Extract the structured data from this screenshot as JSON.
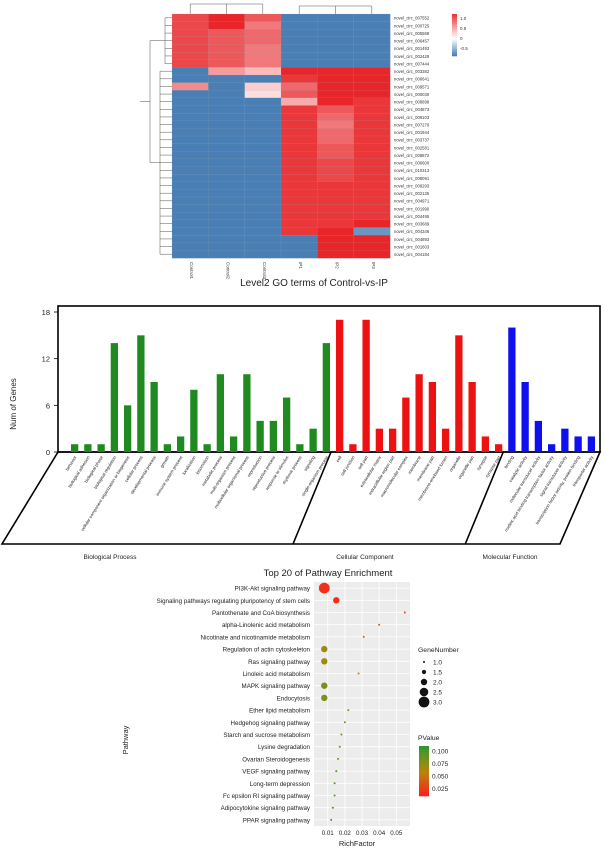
{
  "heatmap": {
    "title": "Level2 GO terms of Control-vs-IP",
    "columns": [
      "Control1",
      "Control2",
      "Control3",
      "IP1",
      "IP2",
      "IP3"
    ],
    "rows": [
      {
        "label": "novel_circ_007552",
        "values": [
          1.1,
          1.6,
          1.0,
          -0.9,
          -0.9,
          -0.9
        ]
      },
      {
        "label": "novel_circ_000725",
        "values": [
          1.1,
          1.3,
          0.8,
          -0.9,
          -0.9,
          -0.9
        ]
      },
      {
        "label": "novel_circ_005568",
        "values": [
          1.1,
          1.0,
          0.9,
          -0.9,
          -0.9,
          -0.9
        ]
      },
      {
        "label": "novel_circ_006457",
        "values": [
          1.1,
          1.0,
          0.9,
          -0.9,
          -0.9,
          -0.9
        ]
      },
      {
        "label": "novel_circ_001493",
        "values": [
          1.1,
          1.0,
          0.8,
          -0.9,
          -0.9,
          -0.9
        ]
      },
      {
        "label": "novel_circ_002428",
        "values": [
          1.1,
          1.0,
          0.8,
          -0.9,
          -0.9,
          -0.9
        ]
      },
      {
        "label": "novel_circ_007444",
        "values": [
          1.1,
          1.0,
          0.8,
          -0.9,
          -0.9,
          -0.9
        ]
      },
      {
        "label": "novel_circ_003382",
        "values": [
          -0.9,
          0.6,
          0.4,
          1.3,
          1.4,
          1.3
        ]
      },
      {
        "label": "novel_circ_006641",
        "values": [
          -0.9,
          -0.9,
          -0.9,
          1.2,
          1.6,
          1.3
        ]
      },
      {
        "label": "novel_circ_009571",
        "values": [
          0.7,
          -0.9,
          0.3,
          0.9,
          1.4,
          1.3
        ]
      },
      {
        "label": "novel_circ_000030",
        "values": [
          -0.9,
          -0.9,
          0.2,
          1.0,
          1.4,
          1.3
        ]
      },
      {
        "label": "novel_circ_008898",
        "values": [
          -0.9,
          -0.9,
          -0.9,
          0.5,
          1.3,
          1.2
        ]
      },
      {
        "label": "novel_circ_004873",
        "values": [
          -0.9,
          -0.9,
          -0.9,
          1.2,
          1.0,
          1.2
        ]
      },
      {
        "label": "novel_circ_009103",
        "values": [
          -0.9,
          -0.9,
          -0.9,
          1.2,
          0.9,
          1.2
        ]
      },
      {
        "label": "novel_circ_007270",
        "values": [
          -0.9,
          -0.9,
          -0.9,
          1.2,
          0.8,
          1.2
        ]
      },
      {
        "label": "novel_circ_001944",
        "values": [
          -0.9,
          -0.9,
          -0.9,
          1.2,
          0.9,
          1.2
        ]
      },
      {
        "label": "novel_circ_003737",
        "values": [
          -0.9,
          -0.9,
          -0.9,
          1.2,
          0.9,
          1.2
        ]
      },
      {
        "label": "novel_circ_002581",
        "values": [
          -0.9,
          -0.9,
          -0.9,
          1.2,
          1.0,
          1.2
        ]
      },
      {
        "label": "novel_circ_008872",
        "values": [
          -0.9,
          -0.9,
          -0.9,
          1.2,
          1.0,
          1.2
        ]
      },
      {
        "label": "novel_circ_006600",
        "values": [
          -0.9,
          -0.9,
          -0.9,
          1.2,
          1.1,
          1.2
        ]
      },
      {
        "label": "novel_circ_010313",
        "values": [
          -0.9,
          -0.9,
          -0.9,
          1.2,
          1.1,
          1.2
        ]
      },
      {
        "label": "novel_circ_008091",
        "values": [
          -0.9,
          -0.9,
          -0.9,
          1.2,
          1.1,
          1.2
        ]
      },
      {
        "label": "novel_circ_009293",
        "values": [
          -0.9,
          -0.9,
          -0.9,
          1.2,
          1.2,
          1.2
        ]
      },
      {
        "label": "novel_circ_002135",
        "values": [
          -0.9,
          -0.9,
          -0.9,
          1.2,
          1.2,
          1.2
        ]
      },
      {
        "label": "novel_circ_004971",
        "values": [
          -0.9,
          -0.9,
          -0.9,
          1.2,
          1.2,
          1.2
        ]
      },
      {
        "label": "novel_circ_001990",
        "values": [
          -0.9,
          -0.9,
          -0.9,
          1.2,
          1.2,
          1.2
        ]
      },
      {
        "label": "novel_circ_004495",
        "values": [
          -0.9,
          -0.9,
          -0.9,
          1.2,
          1.2,
          1.2
        ]
      },
      {
        "label": "novel_circ_003689",
        "values": [
          -0.9,
          -0.9,
          -0.9,
          1.2,
          1.2,
          1.3
        ]
      },
      {
        "label": "novel_circ_004346",
        "values": [
          -0.9,
          -0.9,
          -0.9,
          1.2,
          1.3,
          -0.7
        ]
      },
      {
        "label": "novel_circ_004893",
        "values": [
          -0.9,
          -0.9,
          -0.9,
          -0.9,
          1.3,
          1.3
        ]
      },
      {
        "label": "novel_circ_001603",
        "values": [
          -0.9,
          -0.9,
          -0.9,
          -0.9,
          1.3,
          1.3
        ]
      },
      {
        "label": "novel_circ_004184",
        "values": [
          -0.9,
          -0.9,
          -0.9,
          -0.9,
          1.3,
          1.3
        ]
      }
    ],
    "legend_ticks": [
      "1.0",
      "0.5",
      "0",
      "-0.5"
    ],
    "legend_values": [
      1.0,
      0.5,
      0,
      -0.5
    ],
    "colors": {
      "high": "#e8262a",
      "mid": "#ffffff",
      "low": "#4a7fb5"
    }
  },
  "go_bar": {
    "ylabel": "Num of Genes",
    "yticks": [
      "18",
      "12",
      "6",
      "0"
    ],
    "ymax": 18,
    "terms": [
      {
        "label": "behavior",
        "value": 1,
        "group": 0
      },
      {
        "label": "biological adhesion",
        "value": 1,
        "group": 0
      },
      {
        "label": "biological phase",
        "value": 1,
        "group": 0
      },
      {
        "label": "biological regulation",
        "value": 14,
        "group": 0
      },
      {
        "label": "cellular component organization or biogenesis",
        "value": 6,
        "group": 0
      },
      {
        "label": "cellular process",
        "value": 15,
        "group": 0
      },
      {
        "label": "developmental process",
        "value": 9,
        "group": 0
      },
      {
        "label": "growth",
        "value": 1,
        "group": 0
      },
      {
        "label": "immune system process",
        "value": 2,
        "group": 0
      },
      {
        "label": "localization",
        "value": 8,
        "group": 0
      },
      {
        "label": "locomotion",
        "value": 1,
        "group": 0
      },
      {
        "label": "metabolic process",
        "value": 10,
        "group": 0
      },
      {
        "label": "multi-organism process",
        "value": 2,
        "group": 0
      },
      {
        "label": "multicellular organismal process",
        "value": 10,
        "group": 0
      },
      {
        "label": "reproduction",
        "value": 4,
        "group": 0
      },
      {
        "label": "reproductive process",
        "value": 4,
        "group": 0
      },
      {
        "label": "response to stimulus",
        "value": 7,
        "group": 0
      },
      {
        "label": "rhythmic process",
        "value": 1,
        "group": 0
      },
      {
        "label": "signaling",
        "value": 3,
        "group": 0
      },
      {
        "label": "single-organism process",
        "value": 14,
        "group": 0
      },
      {
        "label": "cell",
        "value": 17,
        "group": 1
      },
      {
        "label": "cell junction",
        "value": 1,
        "group": 1
      },
      {
        "label": "cell part",
        "value": 17,
        "group": 1
      },
      {
        "label": "extracellular matrix",
        "value": 3,
        "group": 1
      },
      {
        "label": "extracellular region part",
        "value": 3,
        "group": 1
      },
      {
        "label": "macromolecular complex",
        "value": 7,
        "group": 1
      },
      {
        "label": "membrane",
        "value": 10,
        "group": 1
      },
      {
        "label": "membrane part",
        "value": 9,
        "group": 1
      },
      {
        "label": "membrane-enclosed lumen",
        "value": 3,
        "group": 1
      },
      {
        "label": "organelle",
        "value": 15,
        "group": 1
      },
      {
        "label": "organelle part",
        "value": 9,
        "group": 1
      },
      {
        "label": "synapse",
        "value": 2,
        "group": 1
      },
      {
        "label": "synapse part",
        "value": 1,
        "group": 1
      },
      {
        "label": "binding",
        "value": 16,
        "group": 2
      },
      {
        "label": "catalytic activity",
        "value": 9,
        "group": 2
      },
      {
        "label": "molecular transducer activity",
        "value": 4,
        "group": 2
      },
      {
        "label": "nucleic acid binding transcription factor activity",
        "value": 1,
        "group": 2
      },
      {
        "label": "signal transducer activity",
        "value": 3,
        "group": 2
      },
      {
        "label": "transcription factor activity, protein binding",
        "value": 2,
        "group": 2
      },
      {
        "label": "transporter activity",
        "value": 2,
        "group": 2
      }
    ],
    "groups": [
      {
        "label": "Biological Process",
        "color": "#1f8a1f"
      },
      {
        "label": "Cellular Component",
        "color": "#ee1111"
      },
      {
        "label": "Molecular Function",
        "color": "#1010ee"
      }
    ]
  },
  "pathway": {
    "title": "Top 20 of Pathway Enrichment",
    "xlabel": "RichFactor",
    "ylabel": "Pathway",
    "xticks": [
      "0.01",
      "0.02",
      "0.03",
      "0.04",
      "0.05"
    ],
    "xlim": [
      0.002,
      0.058
    ],
    "size_legend_title": "GeneNumber",
    "size_legend": [
      "1.0",
      "1.5",
      "2.0",
      "2.5",
      "3.0"
    ],
    "size_values": [
      1.0,
      1.5,
      2.0,
      2.5,
      3.0
    ],
    "color_legend_title": "PValue",
    "color_legend": [
      "0.100",
      "0.075",
      "0.050",
      "0.025"
    ],
    "color_values": [
      0.1,
      0.075,
      0.05,
      0.025
    ],
    "pvalue_range": [
      0.01,
      0.11
    ],
    "colors": {
      "low_p": "#ff1a1a",
      "high_p": "#2e9a2e"
    },
    "pathways": [
      {
        "name": "PI3K-Akt signaling pathway",
        "rich": 0.008,
        "genes": 3,
        "p": 0.02
      },
      {
        "name": "Signaling pathways regulating pluripotency of stem cells",
        "rich": 0.015,
        "genes": 2,
        "p": 0.02
      },
      {
        "name": "Pantothenate and CoA biosynthesis",
        "rich": 0.055,
        "genes": 1,
        "p": 0.03
      },
      {
        "name": "alpha-Linolenic acid metabolism",
        "rich": 0.04,
        "genes": 1,
        "p": 0.04
      },
      {
        "name": "Nicotinate and nicotinamide metabolism",
        "rich": 0.031,
        "genes": 1,
        "p": 0.05
      },
      {
        "name": "Regulation of actin cytoskeleton",
        "rich": 0.008,
        "genes": 2,
        "p": 0.07
      },
      {
        "name": "Ras signaling pathway",
        "rich": 0.008,
        "genes": 2,
        "p": 0.07
      },
      {
        "name": "Linoleic acid metabolism",
        "rich": 0.028,
        "genes": 1,
        "p": 0.06
      },
      {
        "name": "MAPK signaling pathway",
        "rich": 0.008,
        "genes": 2,
        "p": 0.08
      },
      {
        "name": "Endocytosis",
        "rich": 0.008,
        "genes": 2,
        "p": 0.08
      },
      {
        "name": "Ether lipid metabolism",
        "rich": 0.022,
        "genes": 1,
        "p": 0.07
      },
      {
        "name": "Hedgehog signaling pathway",
        "rich": 0.02,
        "genes": 1,
        "p": 0.08
      },
      {
        "name": "Starch and sucrose metabolism",
        "rich": 0.018,
        "genes": 1,
        "p": 0.09
      },
      {
        "name": "Lysine degradation",
        "rich": 0.017,
        "genes": 1,
        "p": 0.09
      },
      {
        "name": "Ovarian Steroidogenesis",
        "rich": 0.016,
        "genes": 1,
        "p": 0.09
      },
      {
        "name": "VEGF signaling pathway",
        "rich": 0.015,
        "genes": 1,
        "p": 0.1
      },
      {
        "name": "Long-term depression",
        "rich": 0.014,
        "genes": 1,
        "p": 0.1
      },
      {
        "name": "Fc epsilon RI signaling pathway",
        "rich": 0.014,
        "genes": 1,
        "p": 0.1
      },
      {
        "name": "Adipocytokine signaling pathway",
        "rich": 0.013,
        "genes": 1,
        "p": 0.1
      },
      {
        "name": "PPAR signaling pathway",
        "rich": 0.012,
        "genes": 1,
        "p": 0.1
      }
    ]
  },
  "chart_data": [
    {
      "type": "heatmap",
      "title": "Level2 GO terms of Control-vs-IP",
      "x": [
        "Control1",
        "Control2",
        "Control3",
        "IP1",
        "IP2",
        "IP3"
      ],
      "note_rows": "32 rows, see heatmap.rows"
    },
    {
      "type": "bar",
      "ylabel": "Num of Genes",
      "ylim": [
        0,
        18
      ],
      "groups": [
        "Biological Process",
        "Cellular Component",
        "Molecular Function"
      ]
    },
    {
      "type": "scatter",
      "title": "Top 20 of Pathway Enrichment",
      "xlabel": "RichFactor",
      "ylabel": "Pathway"
    }
  ]
}
